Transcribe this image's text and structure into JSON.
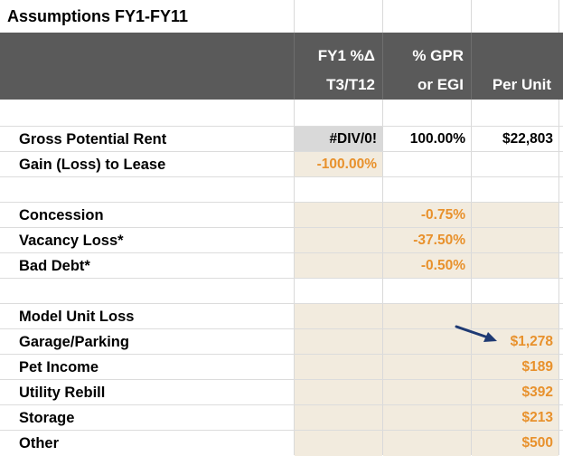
{
  "title": "Assumptions FY1-FY11",
  "headers": {
    "col1": [
      "FY1 %Δ",
      "T3/T12"
    ],
    "col2": [
      "% GPR",
      "or EGI"
    ],
    "col3": [
      "",
      "Per Unit"
    ]
  },
  "rows": [
    {
      "label": "",
      "c1": "",
      "c2": "",
      "c3": ""
    },
    {
      "label": "Gross Potential Rent",
      "c1": "#DIV/0!",
      "c2": "100.00%",
      "c3": "$22,803"
    },
    {
      "label": "Gain (Loss) to Lease",
      "c1": "-100.00%",
      "c2": "",
      "c3": ""
    },
    {
      "label": "",
      "c1": "",
      "c2": "",
      "c3": ""
    },
    {
      "label": "Concession",
      "c1": "",
      "c2": "-0.75%",
      "c3": ""
    },
    {
      "label": "Vacancy Loss*",
      "c1": "",
      "c2": "-37.50%",
      "c3": ""
    },
    {
      "label": "Bad Debt*",
      "c1": "",
      "c2": "-0.50%",
      "c3": ""
    },
    {
      "label": "",
      "c1": "",
      "c2": "",
      "c3": ""
    },
    {
      "label": "Model Unit Loss",
      "c1": "",
      "c2": "",
      "c3": ""
    },
    {
      "label": "Garage/Parking",
      "c1": "",
      "c2": "",
      "c3": "$1,278"
    },
    {
      "label": "Pet Income",
      "c1": "",
      "c2": "",
      "c3": "$189"
    },
    {
      "label": "Utility Rebill",
      "c1": "",
      "c2": "",
      "c3": "$392"
    },
    {
      "label": "Storage",
      "c1": "",
      "c2": "",
      "c3": "$213"
    },
    {
      "label": "Other",
      "c1": "",
      "c2": "",
      "c3": "$500"
    }
  ],
  "colors": {
    "header_bg": "#5a5a5a",
    "input_tan": "#f2ebde",
    "calc_grey": "#d9d9d9",
    "orange_text": "#e8912c",
    "arrow": "#1f3a73"
  },
  "annotation_icon": "arrow-icon"
}
